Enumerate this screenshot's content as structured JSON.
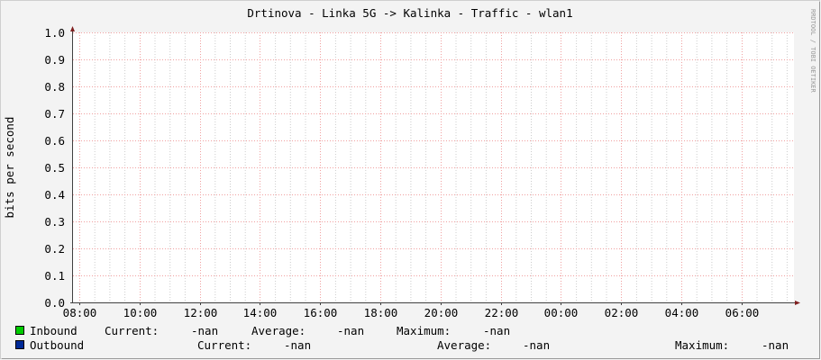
{
  "colors": {
    "background": "#f3f3f3",
    "plot": "#ffffff",
    "major_grid": "#f0a0a0",
    "minor_grid": "#cccccc",
    "axis": "#404040",
    "arrow": "#802020",
    "inbound": "#00cc00",
    "outbound": "#002a97"
  },
  "watermark": "RRDTOOL / TOBI OETIKER",
  "chart_data": {
    "type": "line",
    "title": "Drtinova - Linka 5G -> Kalinka  - Traffic - wlan1",
    "ylabel": "bits per second",
    "xlabel": "",
    "ylim": [
      0,
      1.0
    ],
    "yticks": [
      "0.0",
      "0.1",
      "0.2",
      "0.3",
      "0.4",
      "0.5",
      "0.6",
      "0.7",
      "0.8",
      "0.9",
      "1.0"
    ],
    "xticks": [
      "08:00",
      "10:00",
      "12:00",
      "14:00",
      "16:00",
      "18:00",
      "20:00",
      "22:00",
      "00:00",
      "02:00",
      "04:00",
      "06:00"
    ],
    "grid": true,
    "series": [
      {
        "name": "Inbound",
        "values": [],
        "current": "-nan",
        "average": "-nan",
        "maximum": "-nan"
      },
      {
        "name": "Outbound",
        "values": [],
        "current": "-nan",
        "average": "-nan",
        "maximum": "-nan"
      }
    ],
    "legend_labels": {
      "current": "Current:",
      "average": "Average:",
      "maximum": "Maximum:"
    },
    "legend": "bottom"
  }
}
